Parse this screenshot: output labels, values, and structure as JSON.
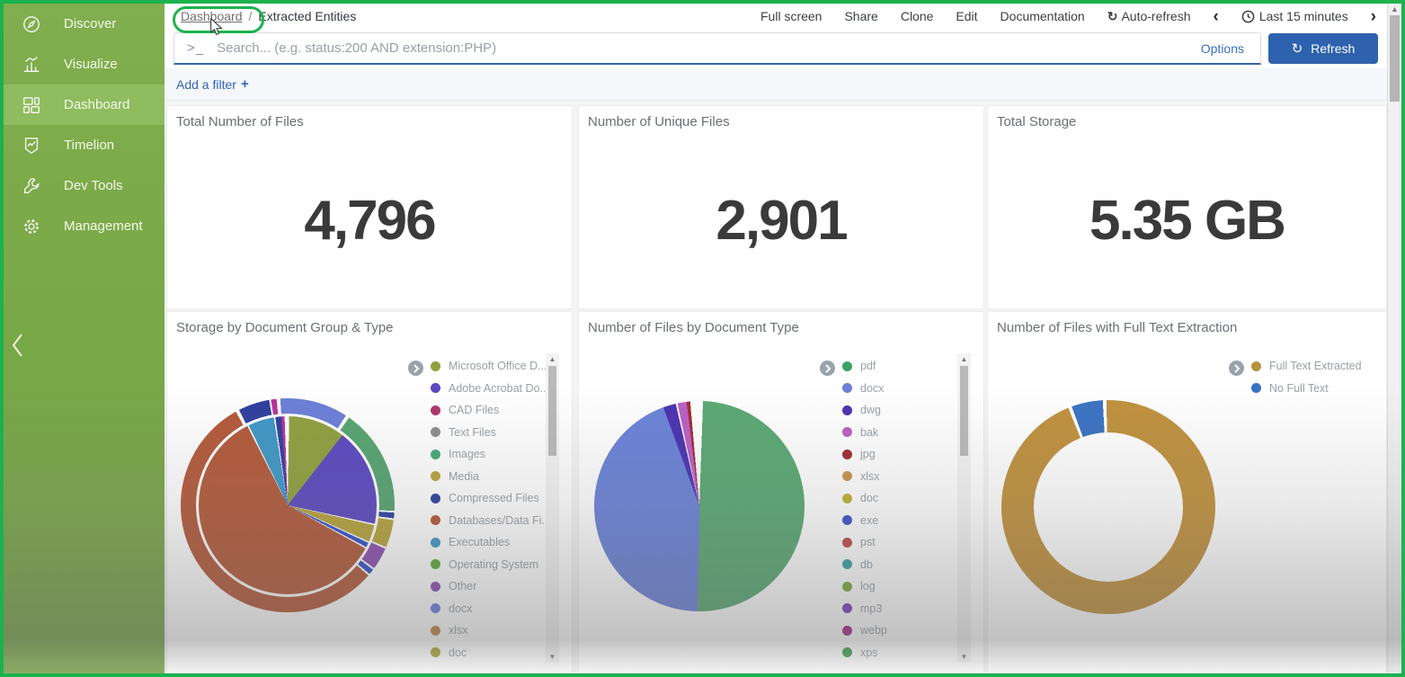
{
  "sidebar": {
    "items": [
      {
        "label": "Discover",
        "active": false
      },
      {
        "label": "Visualize",
        "active": false
      },
      {
        "label": "Dashboard",
        "active": true
      },
      {
        "label": "Timelion",
        "active": false
      },
      {
        "label": "Dev Tools",
        "active": false
      },
      {
        "label": "Management",
        "active": false
      }
    ]
  },
  "topnav": {
    "breadcrumb": {
      "parent": "Dashboard",
      "separator": "/",
      "current": "Extracted Entities"
    },
    "menu": [
      "Full screen",
      "Share",
      "Clone",
      "Edit",
      "Documentation"
    ],
    "auto_refresh_label": "Auto-refresh",
    "time_range_label": "Last 15 minutes"
  },
  "search": {
    "placeholder": "Search... (e.g. status:200 AND extension:PHP)",
    "options_label": "Options",
    "refresh_label": "Refresh"
  },
  "filter_bar": {
    "add_filter_label": "Add a filter"
  },
  "metrics": [
    {
      "title": "Total Number of Files",
      "value": "4,796"
    },
    {
      "title": "Number of Unique Files",
      "value": "2,901"
    },
    {
      "title": "Total Storage",
      "value": "5.35 GB"
    }
  ],
  "icons": {
    "prompt": ">_",
    "refresh": "↻",
    "chevron_left": "‹",
    "chevron_right": "›",
    "plus": "+",
    "arrow_up": "▲",
    "arrow_down": "▼"
  },
  "colors": {
    "annotation_green": "#1cb24e",
    "sidebar_green": "#78a746",
    "sidebar_active": "#8fbc5f",
    "refresh_button_blue": "#2e62ae",
    "link_blue": "#2f66b3",
    "search_underline_blue": "#3b64ad"
  },
  "chart_data": [
    {
      "type": "pie",
      "rings": "double",
      "title": "Storage by Document Group & Type",
      "legend_position": "right",
      "legend": [
        {
          "label": "Microsoft Office D...",
          "color": "#90a03f"
        },
        {
          "label": "Adobe Acrobat Do...",
          "color": "#5b48c0"
        },
        {
          "label": "CAD Files",
          "color": "#b0366c"
        },
        {
          "label": "Text Files",
          "color": "#8d8d8d"
        },
        {
          "label": "Images",
          "color": "#43a977"
        },
        {
          "label": "Media",
          "color": "#b7a43c"
        },
        {
          "label": "Compressed Files",
          "color": "#2e3f9e"
        },
        {
          "label": "Databases/Data Fi...",
          "color": "#b3593a"
        },
        {
          "label": "Executables",
          "color": "#3f97c5"
        },
        {
          "label": "Operating System",
          "color": "#5ea73d"
        },
        {
          "label": "Other",
          "color": "#8a4fb0"
        },
        {
          "label": "docx",
          "color": "#6b7fd7"
        },
        {
          "label": "xlsx",
          "color": "#bd8749"
        },
        {
          "label": "doc",
          "color": "#a8a336"
        }
      ],
      "inner_slices": [
        {
          "color": "#ffffff",
          "from": 0,
          "to": 1
        },
        {
          "color": "#90a03f",
          "from": 1,
          "to": 38
        },
        {
          "color": "#5b48c0",
          "from": 38,
          "to": 102
        },
        {
          "color": "#ffffff",
          "from": 102,
          "to": 103
        },
        {
          "color": "#b7a43c",
          "from": 103,
          "to": 114
        },
        {
          "color": "#ffffff",
          "from": 114,
          "to": 115
        },
        {
          "color": "#3350c8",
          "from": 115,
          "to": 118
        },
        {
          "color": "#ffffff",
          "from": 118,
          "to": 119
        },
        {
          "color": "#b3593a",
          "from": 119,
          "to": 333
        },
        {
          "color": "#ffffff",
          "from": 333,
          "to": 334
        },
        {
          "color": "#3f97c5",
          "from": 334,
          "to": 351
        },
        {
          "color": "#ffffff",
          "from": 351,
          "to": 352
        },
        {
          "color": "#2e3f9e",
          "from": 352,
          "to": 356
        },
        {
          "color": "#b8319a",
          "from": 356,
          "to": 358
        },
        {
          "color": "#ffffff",
          "from": 358,
          "to": 360
        }
      ],
      "outer_slices": [
        {
          "color": "#6b7fd7",
          "from": 0,
          "to": 33
        },
        {
          "color": "#ffffff",
          "from": 33,
          "to": 35
        },
        {
          "color": "#55a470",
          "from": 35,
          "to": 93
        },
        {
          "color": "#ffffff",
          "from": 93,
          "to": 94
        },
        {
          "color": "#2e3f9e",
          "from": 94,
          "to": 97
        },
        {
          "color": "#ffffff",
          "from": 97,
          "to": 98
        },
        {
          "color": "#b7a43c",
          "from": 98,
          "to": 113
        },
        {
          "color": "#ffffff",
          "from": 113,
          "to": 114
        },
        {
          "color": "#8a4fb0",
          "from": 114,
          "to": 126
        },
        {
          "color": "#ffffff",
          "from": 126,
          "to": 127
        },
        {
          "color": "#3350c8",
          "from": 127,
          "to": 130
        },
        {
          "color": "#ffffff",
          "from": 130,
          "to": 131
        },
        {
          "color": "#b3593a",
          "from": 131,
          "to": 331
        },
        {
          "color": "#ffffff",
          "from": 331,
          "to": 333
        },
        {
          "color": "#2e3f9e",
          "from": 333,
          "to": 350
        },
        {
          "color": "#ffffff",
          "from": 350,
          "to": 351
        },
        {
          "color": "#b8319a",
          "from": 351,
          "to": 354
        },
        {
          "color": "#ffffff",
          "from": 354,
          "to": 356
        },
        {
          "color": "#6b7fd7",
          "from": 356,
          "to": 360
        }
      ]
    },
    {
      "type": "pie",
      "rings": "single",
      "title": "Number of Files by Document Type",
      "legend_position": "right",
      "legend": [
        {
          "label": "pdf",
          "color": "#3aa368"
        },
        {
          "label": "docx",
          "color": "#6b82d8"
        },
        {
          "label": "dwg",
          "color": "#4b32b0"
        },
        {
          "label": "bak",
          "color": "#bb5fc5"
        },
        {
          "label": "jpg",
          "color": "#9e2b35"
        },
        {
          "label": "xlsx",
          "color": "#c89350"
        },
        {
          "label": "doc",
          "color": "#bfb03a"
        },
        {
          "label": "exe",
          "color": "#3d51c4"
        },
        {
          "label": "pst",
          "color": "#c04b4b"
        },
        {
          "label": "db",
          "color": "#3b9ea3"
        },
        {
          "label": "log",
          "color": "#7da73c"
        },
        {
          "label": "mp3",
          "color": "#7a3ebd"
        },
        {
          "label": "webp",
          "color": "#a32989"
        },
        {
          "label": "xps",
          "color": "#3b9e4f"
        }
      ],
      "slices": [
        {
          "color": "#ffffff",
          "from": 0,
          "to": 2
        },
        {
          "color": "#5aa873",
          "from": 2,
          "to": 181
        },
        {
          "color": "#6b82d8",
          "from": 181,
          "to": 340
        },
        {
          "color": "#4b32b0",
          "from": 340,
          "to": 347
        },
        {
          "color": "#ffffff",
          "from": 347,
          "to": 348
        },
        {
          "color": "#bb5fc5",
          "from": 348,
          "to": 353
        },
        {
          "color": "#9e2b35",
          "from": 353,
          "to": 355
        },
        {
          "color": "#ffffff",
          "from": 355,
          "to": 360
        }
      ]
    },
    {
      "type": "donut",
      "title": "Number of Files with Full Text Extraction",
      "legend_position": "right",
      "legend": [
        {
          "label": "Full Text Extracted",
          "color": "#b5913c"
        },
        {
          "label": "No Full Text",
          "color": "#3a72c2"
        }
      ],
      "slices": [
        {
          "color": "#c0913e",
          "from": 0,
          "to": 338
        },
        {
          "color": "#ffffff",
          "from": 338,
          "to": 340
        },
        {
          "color": "#3a72c2",
          "from": 340,
          "to": 357
        },
        {
          "color": "#ffffff",
          "from": 357,
          "to": 359
        },
        {
          "color": "#c0913e",
          "from": 359,
          "to": 360
        }
      ]
    }
  ]
}
